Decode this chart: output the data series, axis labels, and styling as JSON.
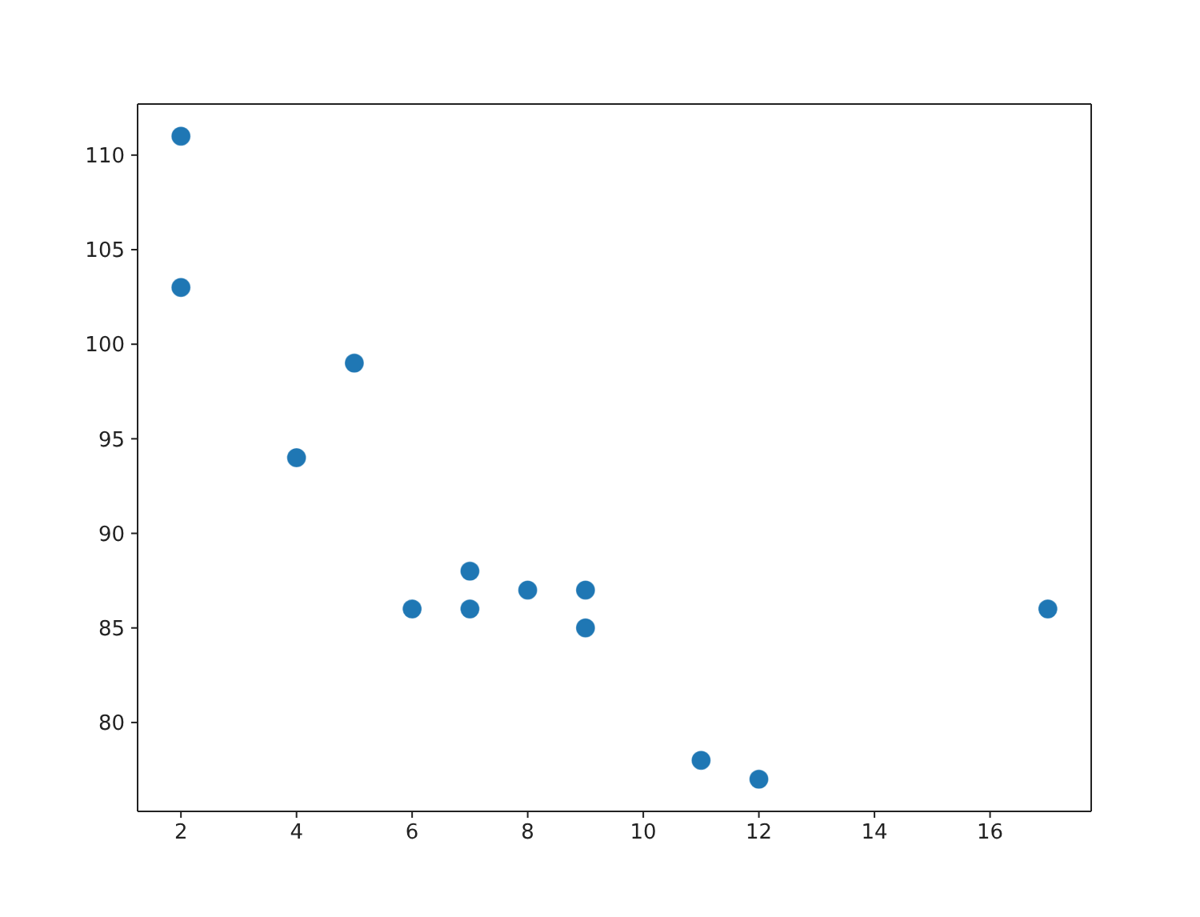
{
  "chart_data": {
    "type": "scatter",
    "x": [
      5,
      7,
      8,
      7,
      2,
      17,
      2,
      9,
      4,
      11,
      12,
      9,
      6
    ],
    "values": [
      99,
      86,
      87,
      88,
      111,
      86,
      103,
      87,
      94,
      78,
      77,
      85,
      86
    ],
    "color": "#1f77b4",
    "marker": "circle",
    "xlim": [
      1.25,
      17.75
    ],
    "ylim": [
      75.3,
      112.7
    ],
    "xticks": [
      2,
      4,
      6,
      8,
      10,
      12,
      14,
      16
    ],
    "yticks": [
      80,
      85,
      90,
      95,
      100,
      105,
      110
    ]
  }
}
